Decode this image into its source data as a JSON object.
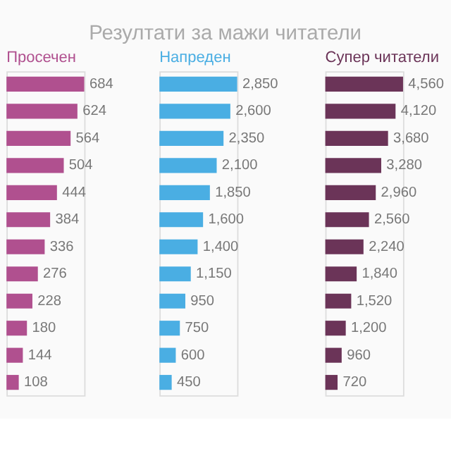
{
  "chart_data": [
    {
      "type": "bar",
      "orientation": "horizontal",
      "title": "Просечен",
      "annotations": [
        "Резултати за мажи читатели"
      ],
      "categories": [
        null,
        null,
        null,
        null,
        null,
        null,
        null,
        null,
        null,
        null,
        null,
        null
      ],
      "series": [
        {
          "color": "#b0508f",
          "values": [
            684,
            624,
            564,
            504,
            444,
            384,
            336,
            276,
            228,
            180,
            144,
            108
          ],
          "value_labels": [
            "684",
            "624",
            "564",
            "504",
            "444",
            "384",
            "336",
            "276",
            "228",
            "180",
            "144",
            "108"
          ]
        }
      ]
    },
    {
      "type": "bar",
      "orientation": "horizontal",
      "title": "Напреден",
      "categories": [
        null,
        null,
        null,
        null,
        null,
        null,
        null,
        null,
        null,
        null,
        null,
        null
      ],
      "series": [
        {
          "color": "#4aaee3",
          "values": [
            2850,
            2600,
            2350,
            2100,
            1850,
            1600,
            1400,
            1150,
            950,
            750,
            600,
            450
          ],
          "value_labels": [
            "2,850",
            "2,600",
            "2,350",
            "2,100",
            "1,850",
            "1,600",
            "1,400",
            "1,150",
            "950",
            "750",
            "600",
            "450"
          ]
        }
      ]
    },
    {
      "type": "bar",
      "orientation": "horizontal",
      "title": "Супер читатели",
      "categories": [
        null,
        null,
        null,
        null,
        null,
        null,
        null,
        null,
        null,
        null,
        null,
        null
      ],
      "series": [
        {
          "color": "#6b3458",
          "values": [
            4560,
            4120,
            3680,
            3280,
            2960,
            2560,
            2240,
            1840,
            1520,
            1200,
            960,
            720
          ],
          "value_labels": [
            "4,560",
            "4,120",
            "3,680",
            "3,280",
            "2,960",
            "2,560",
            "2,240",
            "1,840",
            "1,520",
            "1,200",
            "960",
            "720"
          ]
        }
      ]
    }
  ]
}
